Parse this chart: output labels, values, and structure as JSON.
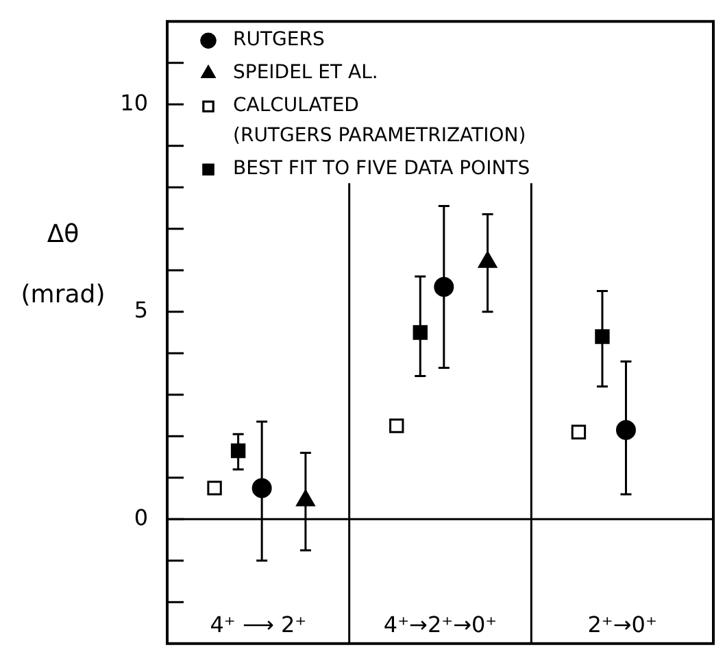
{
  "chart_data": {
    "type": "scatter",
    "ylabel": "Δθ (mrad)",
    "categories": [
      "4⁺ ⟶ 2⁺",
      "4⁺→2⁺→0⁺",
      "2⁺→0⁺"
    ],
    "series": [
      {
        "name": "RUTGERS",
        "color": "#000000",
        "marker": "circle",
        "values": [
          0.75,
          5.6,
          2.15
        ],
        "errors": [
          [
            -1.0,
            2.35
          ],
          [
            3.65,
            7.55
          ],
          [
            0.6,
            3.8
          ]
        ]
      },
      {
        "name": "SPEIDEL ET AL.",
        "color": "#000000",
        "marker": "triangle",
        "values": [
          0.45,
          6.2,
          null
        ],
        "errors": [
          [
            -0.75,
            1.6
          ],
          [
            5.0,
            7.35
          ],
          null
        ]
      },
      {
        "name": "CALCULATED (RUTGERS PARAMETRIZATION)",
        "color": "#ffffff",
        "marker": "square",
        "values": [
          0.75,
          2.25,
          2.1
        ]
      },
      {
        "name": "BEST FIT TO FIVE DATA POINTS",
        "color": "#000000",
        "marker": "square",
        "values": [
          1.65,
          4.5,
          4.4
        ],
        "errors": [
          [
            1.2,
            2.05
          ],
          [
            3.45,
            5.85
          ],
          [
            3.2,
            5.5
          ]
        ]
      }
    ],
    "ylim": [
      -3,
      12
    ],
    "yticks": [
      {
        "value": -2,
        "label": null
      },
      {
        "value": -1,
        "label": null
      },
      0,
      {
        "value": 1,
        "label": null
      },
      {
        "value": 2,
        "label": null
      },
      {
        "value": 3,
        "label": null
      },
      {
        "value": 4,
        "label": null
      },
      5,
      {
        "value": 6,
        "label": null
      },
      {
        "value": 7,
        "label": null
      },
      {
        "value": 8,
        "label": null
      },
      {
        "value": 9,
        "label": null
      },
      10,
      {
        "value": 11,
        "label": null
      }
    ],
    "ref_lines": [
      {
        "axis": "y",
        "value": 0
      }
    ],
    "grid": "x",
    "legend": "top left"
  }
}
